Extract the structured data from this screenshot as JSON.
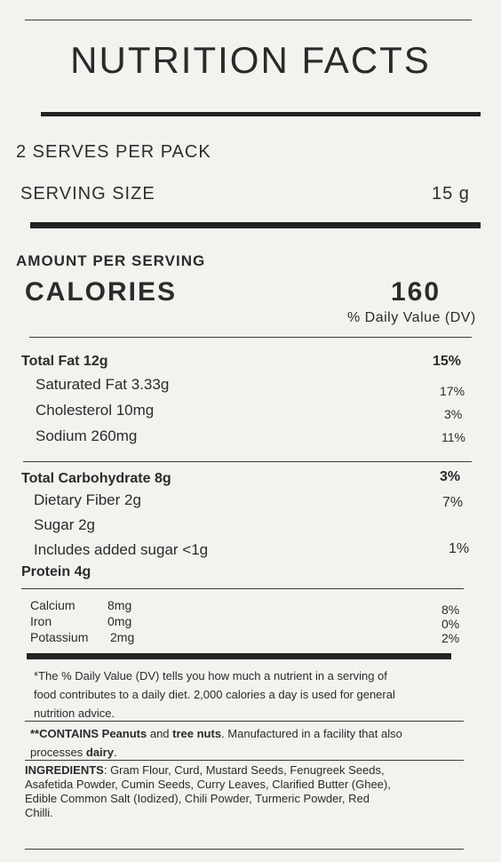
{
  "title": "NUTRITION FACTS",
  "serves": "2 SERVES PER PACK",
  "serving_size_label": "SERVING SIZE",
  "serving_size_value": "15 g",
  "amount_per_serving": "AMOUNT PER SERVING",
  "calories_label": "CALORIES",
  "calories_value": "160",
  "dv_header": "% Daily Value (DV)",
  "nutrients": {
    "total_fat": {
      "label": "Total Fat 12g",
      "dv": "15%"
    },
    "saturated_fat": {
      "label": "Saturated Fat 3.33g",
      "dv": "17%"
    },
    "cholesterol": {
      "label": "Cholesterol 10mg",
      "dv": "3%"
    },
    "sodium": {
      "label": "Sodium 260mg",
      "dv": "11%"
    },
    "total_carb": {
      "label": "Total Carbohydrate 8g",
      "dv": "3%"
    },
    "fiber": {
      "label": "Dietary Fiber 2g",
      "dv": "7%"
    },
    "sugar": {
      "label": "Sugar 2g"
    },
    "added_sugar": {
      "label": "Includes added sugar <1g",
      "dv": "1%"
    },
    "protein": {
      "label": "Protein 4g"
    }
  },
  "minerals": {
    "calcium": {
      "name": "Calcium",
      "amount": "8mg",
      "dv": "8%"
    },
    "iron": {
      "name": "Iron",
      "amount": "0mg",
      "dv": "0%"
    },
    "potassium": {
      "name": "Potassium",
      "amount": "2mg",
      "dv": "2%"
    }
  },
  "footnote": {
    "line1": "*The % Daily Value (DV) tells you how much a nutrient in a serving of",
    "line2": "food contributes to a daily diet. 2,000 calories a day is used for general",
    "line3": "nutrition advice."
  },
  "allergen": {
    "prefix": "**CONTAINS Peanuts",
    "and": " and ",
    "nuts": "tree nuts",
    "rest": ". Manufactured in a facility that also",
    "line2_prefix": "processes ",
    "dairy": "dairy",
    "period": "."
  },
  "ingredients": {
    "label": "INGREDIENTS",
    "line1": ": Gram Flour, Curd, Mustard Seeds, Fenugreek Seeds,",
    "line2": "Asafetida Powder, Cumin Seeds, Curry Leaves, Clarified Butter (Ghee),",
    "line3": "Edible Common Salt (Iodized), Chili Powder, Turmeric Powder, Red",
    "line4": "Chilli."
  }
}
